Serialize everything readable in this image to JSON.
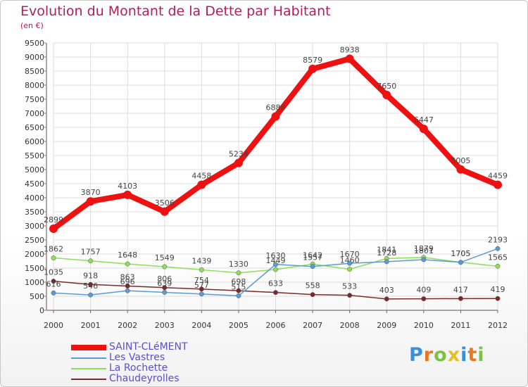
{
  "title": "Evolution du Montant de la Dette par Habitant",
  "subtitle": "(en €)",
  "brand": "Proxiti",
  "chart_data": {
    "type": "line",
    "x": [
      "2000",
      "2001",
      "2002",
      "2003",
      "2004",
      "2005",
      "2006",
      "2007",
      "2008",
      "2009",
      "2010",
      "2011",
      "2012"
    ],
    "ylim": [
      0,
      9500
    ],
    "yticks": [
      0,
      500,
      1000,
      1500,
      2000,
      2500,
      3000,
      3500,
      4000,
      4500,
      5000,
      5500,
      6000,
      6500,
      7000,
      7500,
      8000,
      8500,
      9000,
      9500
    ],
    "grid": true,
    "legend_position": "bottom-left",
    "series": [
      {
        "name": "SAINT-CLéMENT",
        "color": "#ee1111",
        "values": [
          2899,
          3870,
          4103,
          3506,
          4458,
          5234,
          6888,
          8579,
          8938,
          7650,
          6447,
          5005,
          4459
        ]
      },
      {
        "name": "Les Vastres",
        "color": "#5b9bd5",
        "values": [
          616,
          546,
          696,
          639,
          577,
          515,
          1630,
          1557,
          1670,
          1728,
          1801,
          1705,
          2193
        ]
      },
      {
        "name": "La Rochette",
        "color": "#8ede5a",
        "values": [
          1862,
          1757,
          1648,
          1549,
          1439,
          1330,
          1449,
          1642,
          1460,
          1841,
          1879,
          1705,
          1565
        ]
      },
      {
        "name": "Chaudeyrolles",
        "color": "#7a2a2a",
        "values": [
          1035,
          918,
          863,
          806,
          754,
          698,
          633,
          558,
          533,
          403,
          409,
          417,
          419
        ]
      }
    ]
  }
}
